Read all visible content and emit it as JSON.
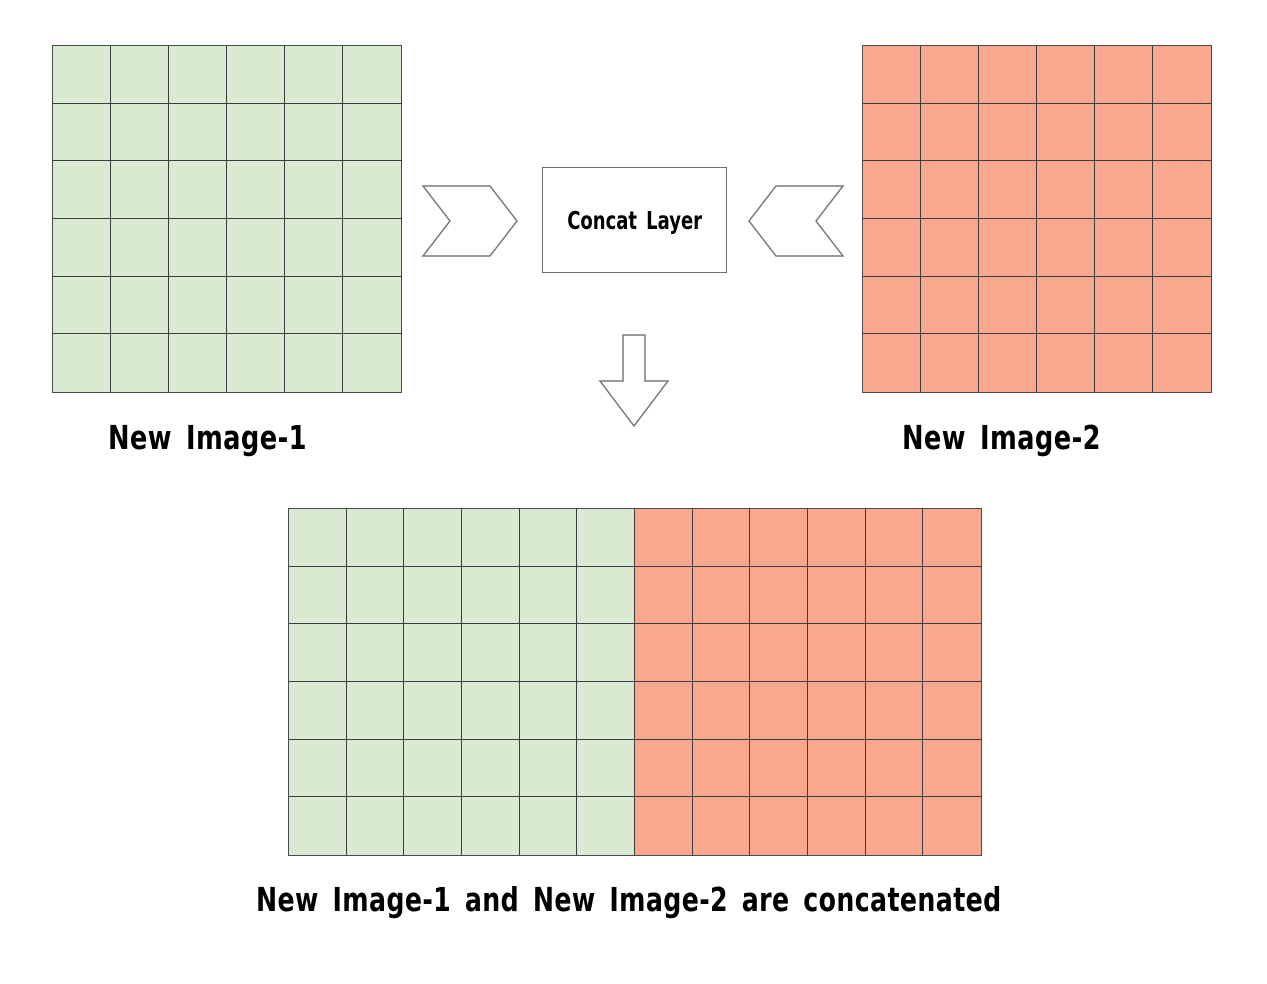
{
  "diagram": {
    "concat_layer_label": "Concat Layer",
    "image_left": {
      "label": "New Image-1",
      "rows": 6,
      "cols": 6,
      "fill_color": "#d9ead2"
    },
    "image_right": {
      "label": "New Image-2",
      "rows": 6,
      "cols": 6,
      "fill_color": "#f9a88e"
    },
    "result": {
      "caption": "New Image-1 and New Image-2 are concatenated",
      "rows": 6,
      "cols_left": 6,
      "cols_right": 6
    },
    "arrows": {
      "right_pointing": "chevron-right-icon",
      "left_pointing": "chevron-left-icon",
      "down": "arrow-down-icon"
    }
  }
}
